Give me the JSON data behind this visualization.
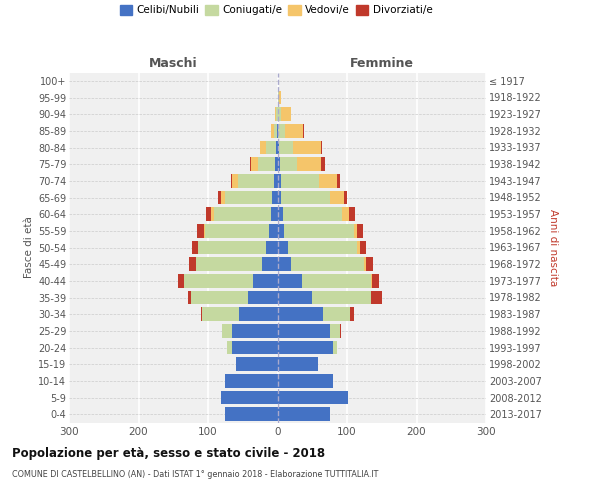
{
  "age_groups": [
    "0-4",
    "5-9",
    "10-14",
    "15-19",
    "20-24",
    "25-29",
    "30-34",
    "35-39",
    "40-44",
    "45-49",
    "50-54",
    "55-59",
    "60-64",
    "65-69",
    "70-74",
    "75-79",
    "80-84",
    "85-89",
    "90-94",
    "95-99",
    "100+"
  ],
  "birth_years": [
    "2013-2017",
    "2008-2012",
    "2003-2007",
    "1998-2002",
    "1993-1997",
    "1988-1992",
    "1983-1987",
    "1978-1982",
    "1973-1977",
    "1968-1972",
    "1963-1967",
    "1958-1962",
    "1953-1957",
    "1948-1952",
    "1943-1947",
    "1938-1942",
    "1933-1937",
    "1928-1932",
    "1923-1927",
    "1918-1922",
    "≤ 1917"
  ],
  "colors": {
    "celibi": "#4472c4",
    "coniugati": "#c5d9a0",
    "vedovi": "#f5c56a",
    "divorziati": "#c0392b"
  },
  "maschi_celibi": [
    76,
    82,
    75,
    60,
    65,
    65,
    56,
    42,
    35,
    22,
    16,
    12,
    10,
    8,
    5,
    3,
    2,
    1,
    0,
    0,
    0
  ],
  "maschi_coniugati": [
    0,
    0,
    0,
    0,
    8,
    15,
    52,
    82,
    100,
    95,
    98,
    92,
    82,
    68,
    52,
    25,
    15,
    4,
    2,
    0,
    0
  ],
  "maschi_vedovi": [
    0,
    0,
    0,
    0,
    0,
    0,
    0,
    0,
    0,
    0,
    1,
    2,
    3,
    5,
    8,
    10,
    8,
    4,
    2,
    0,
    0
  ],
  "maschi_divorziati": [
    0,
    0,
    0,
    0,
    0,
    0,
    2,
    5,
    8,
    10,
    8,
    10,
    8,
    5,
    2,
    2,
    0,
    0,
    0,
    0,
    0
  ],
  "femmine_celibi": [
    76,
    102,
    80,
    58,
    80,
    75,
    65,
    50,
    35,
    20,
    15,
    10,
    8,
    5,
    5,
    3,
    2,
    1,
    0,
    0,
    0
  ],
  "femmine_coniugati": [
    0,
    0,
    0,
    0,
    5,
    15,
    40,
    85,
    100,
    105,
    100,
    100,
    85,
    70,
    55,
    25,
    20,
    10,
    5,
    2,
    0
  ],
  "femmine_vedovi": [
    0,
    0,
    0,
    0,
    0,
    0,
    0,
    0,
    1,
    2,
    3,
    5,
    10,
    20,
    25,
    35,
    40,
    25,
    15,
    3,
    1
  ],
  "femmine_divorziati": [
    0,
    0,
    0,
    0,
    0,
    2,
    5,
    15,
    10,
    10,
    10,
    8,
    8,
    5,
    5,
    5,
    2,
    2,
    0,
    0,
    0
  ],
  "title": "Popolazione per età, sesso e stato civile - 2018",
  "subtitle": "COMUNE DI CASTELBELLINO (AN) - Dati ISTAT 1° gennaio 2018 - Elaborazione TUTTITALIA.IT",
  "maschi_label": "Maschi",
  "femmine_label": "Femmine",
  "ylabel_left": "Fasce di età",
  "ylabel_right": "Anni di nascita",
  "xlim": 300,
  "legend_labels": [
    "Celibi/Nubili",
    "Coniugati/e",
    "Vedovi/e",
    "Divorziati/e"
  ],
  "xtick_vals": [
    -300,
    -200,
    -100,
    0,
    100,
    200,
    300
  ],
  "xtick_labels": [
    "300",
    "200",
    "100",
    "0",
    "100",
    "200",
    "300"
  ]
}
